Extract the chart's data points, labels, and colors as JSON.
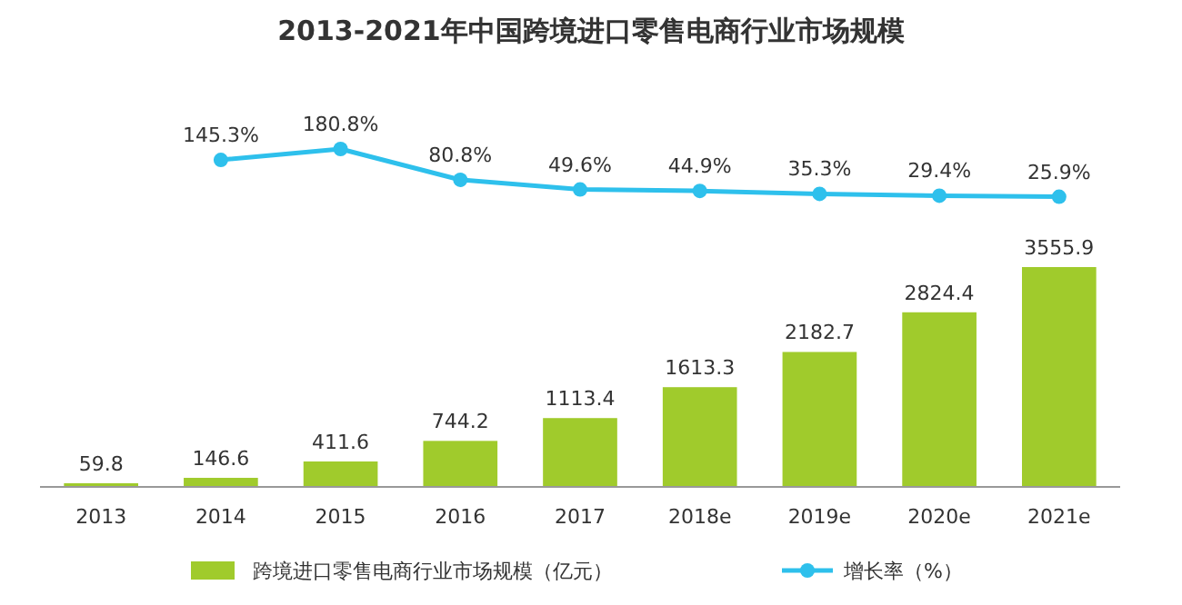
{
  "chart_data": [
    {
      "type": "line",
      "title": "2013-2021年中国跨境进口零售电商行业市场规模",
      "categories": [
        null,
        null,
        null,
        null,
        null,
        null,
        null,
        null,
        null
      ],
      "series": [
        {
          "name": "增长率（%）",
          "color": "#2ec0ec",
          "values": [
            null,
            145.3,
            180.8,
            80.8,
            49.6,
            44.9,
            35.3,
            29.4,
            25.9
          ],
          "value_labels": [
            null,
            "145.3%",
            "180.8%",
            "80.8%",
            "49.6%",
            "44.9%",
            "35.3%",
            "29.4%",
            "25.9%"
          ]
        }
      ],
      "legend": "bottom",
      "marker": "circle"
    },
    {
      "type": "bar",
      "categories": [
        "2013",
        "2014",
        "2015",
        "2016",
        "2017",
        "2018e",
        "2019e",
        "2020e",
        "2021e"
      ],
      "series": [
        {
          "name": "跨境进口零售电商行业市场规模（亿元）",
          "color": "#a0cb2c",
          "values": [
            59.8,
            146.6,
            411.6,
            744.2,
            1113.4,
            1613.3,
            2182.7,
            2824.4,
            3555.9
          ]
        }
      ],
      "data_labels": true,
      "legend": "bottom"
    }
  ]
}
